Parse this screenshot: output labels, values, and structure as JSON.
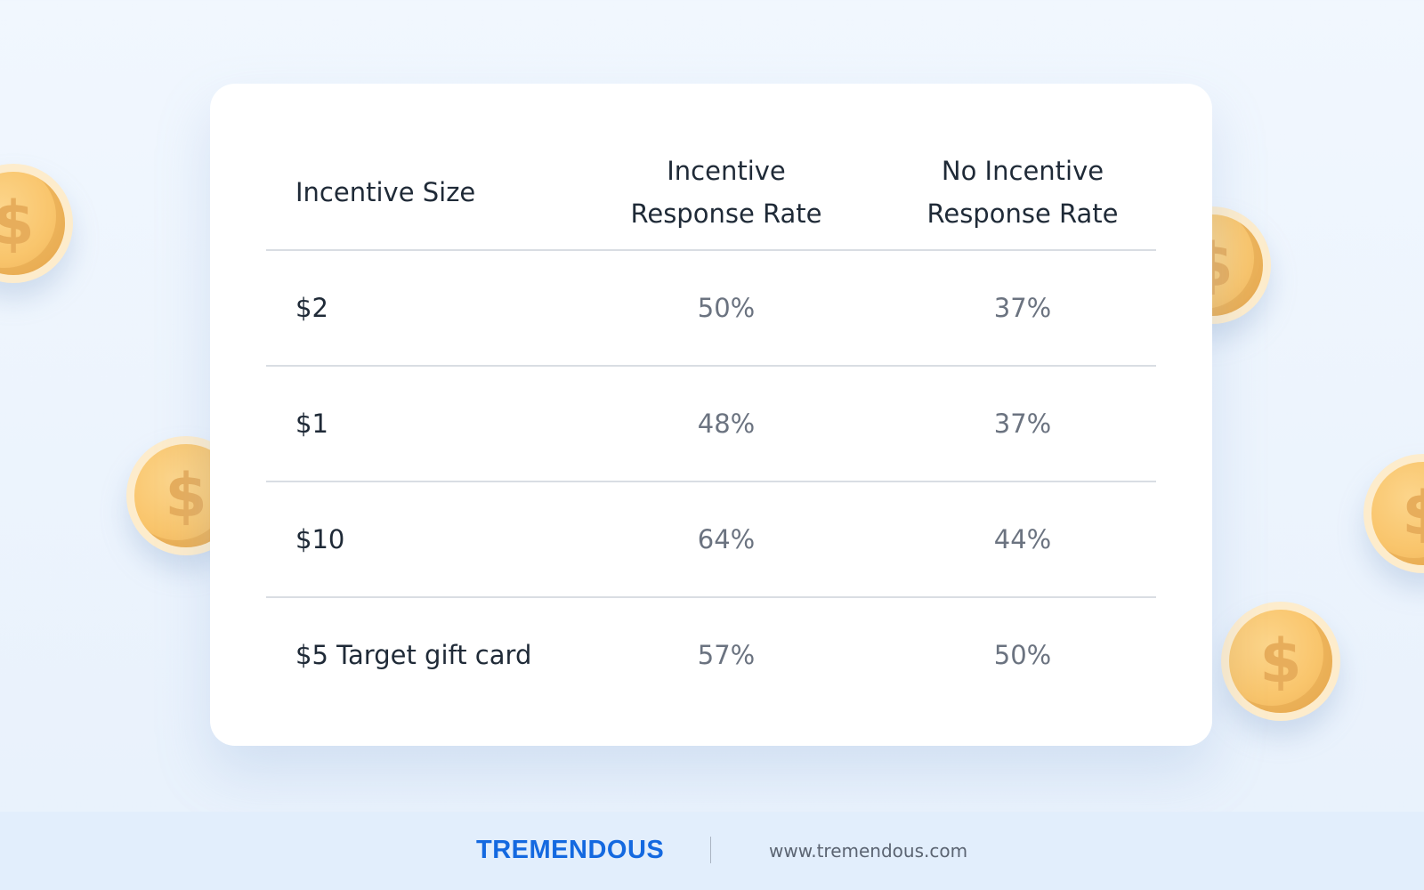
{
  "table": {
    "headers": {
      "size": "Incentive Size",
      "incentive_line1": "Incentive",
      "incentive_line2": "Response Rate",
      "no_incentive_line1": "No Incentive",
      "no_incentive_line2": "Response Rate"
    },
    "rows": [
      {
        "size": "$2",
        "incentive": "50%",
        "no_incentive": "37%"
      },
      {
        "size": "$1",
        "incentive": "48%",
        "no_incentive": "37%"
      },
      {
        "size": "$10",
        "incentive": "64%",
        "no_incentive": "44%"
      },
      {
        "size": "$5 Target gift card",
        "incentive": "57%",
        "no_incentive": "50%"
      }
    ]
  },
  "footer": {
    "brand": "TREMENDOUS",
    "website": "www.tremendous.com"
  },
  "coins": {
    "glyph": "$"
  },
  "colors": {
    "brand": "#1469e0",
    "coin": "#f9c56c",
    "background": "#eef5fd"
  }
}
